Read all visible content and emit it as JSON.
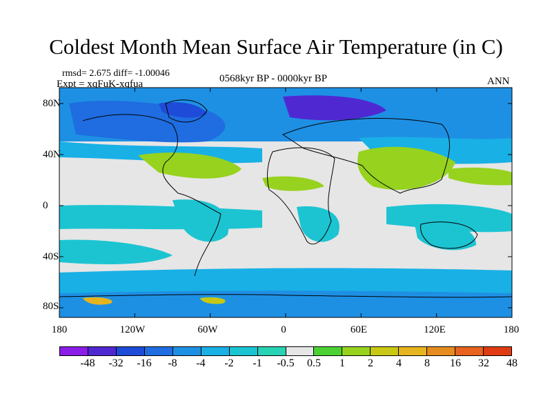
{
  "title": "Coldest Month Mean Surface Air Temperature (in C)",
  "stats": {
    "rmsd_diff": "rmsd= 2.675 diff= -1.00046",
    "experiment": "Expt = xqFuK-xqfua"
  },
  "period": "0568kyr BP - 0000kyr BP",
  "season": "ANN",
  "lat_labels": [
    "80N",
    "40N",
    "0",
    "40S",
    "80S"
  ],
  "lon_labels": [
    "180",
    "120W",
    "60W",
    "0",
    "60E",
    "120E",
    "180"
  ],
  "legend": {
    "labels": [
      "-48",
      "-32",
      "-16",
      "-8",
      "-4",
      "-2",
      "-1",
      "-0.5",
      "0.5",
      "1",
      "2",
      "4",
      "8",
      "16",
      "32",
      "48"
    ],
    "colors": [
      "#8a1ee6",
      "#5028d2",
      "#1e4bd7",
      "#1f6de0",
      "#1e90e4",
      "#19b0e6",
      "#1cc4d2",
      "#28d2b4",
      "#e6e6e6",
      "#4bd232",
      "#96d21e",
      "#c8c814",
      "#e6b41e",
      "#e68c1e",
      "#e6641e",
      "#e03c14"
    ]
  }
}
